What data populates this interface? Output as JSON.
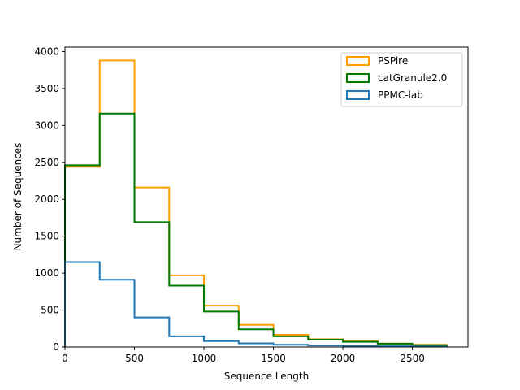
{
  "chart_data": {
    "type": "histogram",
    "title": "",
    "xlabel": "Sequence Length",
    "ylabel": "Number of Sequences",
    "xlim": [
      0,
      2900
    ],
    "ylim": [
      0,
      4060
    ],
    "xticks": [
      0,
      500,
      1000,
      1500,
      2000,
      2500
    ],
    "yticks": [
      0,
      500,
      1000,
      1500,
      2000,
      2500,
      3000,
      3500,
      4000
    ],
    "bin_edges": [
      0,
      250,
      500,
      750,
      1000,
      1250,
      1500,
      1750,
      2000,
      2250,
      2500,
      2750
    ],
    "series": [
      {
        "name": "PSPire",
        "color": "#ff9f00",
        "values": [
          2440,
          3880,
          2160,
          970,
          560,
          300,
          165,
          105,
          80,
          45,
          30
        ]
      },
      {
        "name": "catGranule2.0",
        "color": "#007800",
        "values": [
          2460,
          3160,
          1690,
          830,
          480,
          240,
          145,
          100,
          70,
          45,
          25
        ]
      },
      {
        "name": "PPMC-lab",
        "color": "#1f77b4",
        "values": [
          1150,
          910,
          400,
          145,
          80,
          50,
          30,
          20,
          15,
          10,
          5
        ]
      }
    ],
    "legend_position": "upper right",
    "grid": false
  }
}
